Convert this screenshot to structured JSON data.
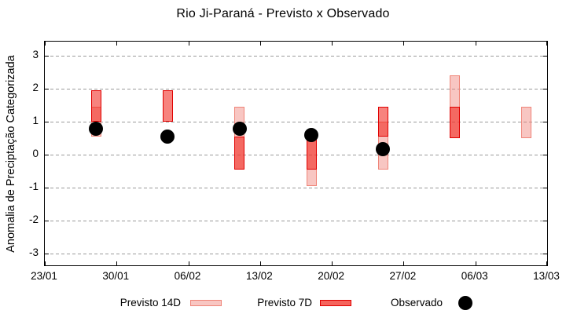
{
  "title": "Rio Ji-Paraná - Previsto x Observado",
  "chart_data": {
    "type": "bar",
    "title": "Rio Ji-Paraná - Previsto x Observado",
    "xlabel": "",
    "ylabel": "Anomalia de Preciptação Categorizada",
    "grid": "horizontal-dashed",
    "legend_position": "bottom",
    "x_axis": {
      "tick_labels": [
        "23/01",
        "30/01",
        "06/02",
        "13/02",
        "20/02",
        "27/02",
        "06/03",
        "13/03"
      ],
      "tick_days": [
        0,
        7,
        14,
        21,
        28,
        35,
        42,
        49
      ],
      "range_days": [
        0,
        49
      ]
    },
    "y_axis": {
      "tick_labels": [
        "3",
        "2",
        "1",
        "0",
        "-1",
        "-2",
        "-3"
      ],
      "tick_values": [
        3,
        2,
        1,
        0,
        -1,
        -2,
        -3
      ],
      "ylim": [
        -3.43,
        3.43
      ]
    },
    "series": [
      {
        "name": "Previsto 14D",
        "type": "range-bar",
        "fill": "rgba(240,128,120,0.45)",
        "border": "#ef8478",
        "legend_fill": "#f8c6c2",
        "points": [
          {
            "date": "28/01",
            "day": 5,
            "low": 0.55,
            "high": 1.45
          },
          {
            "date": "11/02",
            "day": 19,
            "low": -0.45,
            "high": 1.45
          },
          {
            "date": "18/02",
            "day": 26,
            "low": -0.95,
            "high": 0.55
          },
          {
            "date": "25/02",
            "day": 33,
            "low": -0.45,
            "high": 1.0
          },
          {
            "date": "04/03",
            "day": 40,
            "low": 0.5,
            "high": 2.4
          },
          {
            "date": "11/03",
            "day": 47,
            "low": 0.5,
            "high": 1.45
          }
        ]
      },
      {
        "name": "Previsto 7D",
        "type": "range-bar",
        "fill": "rgba(240,30,20,0.55)",
        "border": "#e00000",
        "legend_fill": "#f5645c",
        "points": [
          {
            "date": "28/01",
            "day": 5,
            "low": 1.0,
            "high": 1.95
          },
          {
            "date": "04/02",
            "day": 12,
            "low": 1.0,
            "high": 1.95
          },
          {
            "date": "11/02",
            "day": 19,
            "low": -0.45,
            "high": 0.55
          },
          {
            "date": "18/02",
            "day": 26,
            "low": -0.45,
            "high": 0.55
          },
          {
            "date": "25/02",
            "day": 33,
            "low": 0.55,
            "high": 1.45
          },
          {
            "date": "04/03",
            "day": 40,
            "low": 0.5,
            "high": 1.45
          }
        ]
      },
      {
        "name": "Observado",
        "type": "scatter",
        "color": "#000000",
        "points": [
          {
            "date": "28/01",
            "day": 5,
            "value": 0.78
          },
          {
            "date": "04/02",
            "day": 12,
            "value": 0.54
          },
          {
            "date": "11/02",
            "day": 19,
            "value": 0.79
          },
          {
            "date": "18/02",
            "day": 26,
            "value": 0.6
          },
          {
            "date": "25/02",
            "day": 33,
            "value": 0.17
          }
        ]
      }
    ]
  }
}
